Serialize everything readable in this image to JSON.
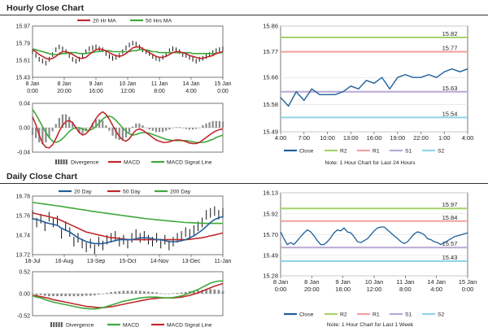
{
  "sections": {
    "hourly": {
      "title": "Hourly Close Chart"
    },
    "daily": {
      "title": "Daily Close Chart"
    }
  },
  "colors": {
    "close": "#1f5f9a",
    "ma_short": "#c0282c",
    "ma_long": "#3fa83c",
    "ma_200": "#3fa83c",
    "macd": "#c0282c",
    "signal": "#3fa83c",
    "divergence": "#8c8c8c",
    "r2": "#a6d36a",
    "r1": "#f2a09e",
    "s1": "#b9a8d4",
    "s2": "#8fd3e8"
  },
  "chart_data": [
    {
      "id": "hourly_price",
      "type": "line",
      "ylim": [
        15.43,
        15.97
      ],
      "yticks": [
        "15.97",
        "15.79",
        "15.61",
        "15.43"
      ],
      "xticks": [
        "8 Jan\n0:00",
        "8 Jan\n20:00",
        "9 Jan\n16:00",
        "10 Jan\n12:00",
        "11 Jan\n8:00",
        "14 Jan\n4:00",
        "15 Jan\n0:00"
      ],
      "legend": [
        "20 Hr MA",
        "50 Hrs MA"
      ],
      "series": [
        {
          "name": "Close",
          "values": [
            15.7,
            15.66,
            15.62,
            15.6,
            15.58,
            15.62,
            15.67,
            15.72,
            15.75,
            15.73,
            15.7,
            15.66,
            15.62,
            15.6,
            15.62,
            15.65,
            15.7,
            15.73,
            15.74,
            15.75,
            15.73,
            15.72,
            15.68,
            15.65,
            15.63,
            15.64,
            15.66,
            15.7,
            15.74,
            15.77,
            15.79,
            15.78,
            15.75,
            15.72,
            15.7,
            15.68,
            15.65,
            15.63,
            15.62,
            15.64,
            15.67,
            15.71,
            15.73,
            15.72,
            15.7,
            15.67,
            15.66,
            15.64,
            15.62,
            15.6,
            15.62,
            15.63,
            15.65,
            15.67,
            15.69,
            15.71,
            15.72,
            15.73
          ]
        },
        {
          "name": "20 Hr MA",
          "values": [
            15.72,
            15.7,
            15.67,
            15.65,
            15.63,
            15.62,
            15.63,
            15.65,
            15.68,
            15.7,
            15.7,
            15.69,
            15.67,
            15.65,
            15.63,
            15.63,
            15.64,
            15.67,
            15.7,
            15.72,
            15.73,
            15.72,
            15.71,
            15.69,
            15.67,
            15.66,
            15.65,
            15.66,
            15.68,
            15.71,
            15.74,
            15.75,
            15.75,
            15.73,
            15.71,
            15.69,
            15.67,
            15.65,
            15.64,
            15.64,
            15.65,
            15.67,
            15.69,
            15.7,
            15.7,
            15.69,
            15.68,
            15.66,
            15.65,
            15.64,
            15.63,
            15.63,
            15.64,
            15.65,
            15.66,
            15.68,
            15.69,
            15.7
          ]
        },
        {
          "name": "50 Hrs MA",
          "values": [
            15.73,
            15.72,
            15.71,
            15.7,
            15.69,
            15.68,
            15.67,
            15.67,
            15.67,
            15.68,
            15.68,
            15.69,
            15.69,
            15.69,
            15.68,
            15.68,
            15.68,
            15.69,
            15.69,
            15.7,
            15.7,
            15.71,
            15.71,
            15.71,
            15.7,
            15.7,
            15.7,
            15.7,
            15.7,
            15.7,
            15.71,
            15.71,
            15.72,
            15.72,
            15.72,
            15.71,
            15.7,
            15.7,
            15.69,
            15.69,
            15.69,
            15.69,
            15.69,
            15.69,
            15.69,
            15.69,
            15.69,
            15.69,
            15.68,
            15.68,
            15.68,
            15.68,
            15.68,
            15.68,
            15.68,
            15.68,
            15.69,
            15.69
          ]
        }
      ]
    },
    {
      "id": "hourly_macd",
      "type": "line",
      "ylim": [
        -0.04,
        0.04
      ],
      "yticks": [
        "0.04",
        "0.00",
        "-0.04"
      ],
      "legend": [
        "Divergence",
        "MACD",
        "MACD Signal Line"
      ],
      "series": [
        {
          "name": "MACD",
          "values": [
            0.018,
            0.005,
            -0.012,
            -0.025,
            -0.032,
            -0.033,
            -0.028,
            -0.018,
            -0.006,
            0.004,
            0.01,
            0.012,
            0.008,
            0.0,
            -0.008,
            -0.012,
            -0.01,
            -0.004,
            0.006,
            0.015,
            0.022,
            0.026,
            0.022,
            0.014,
            0.004,
            -0.006,
            -0.014,
            -0.02,
            -0.022,
            -0.018,
            -0.01,
            -0.004,
            -0.002,
            -0.004,
            -0.008,
            -0.012,
            -0.016,
            -0.02,
            -0.022,
            -0.024,
            -0.024,
            -0.023,
            -0.021,
            -0.02,
            -0.02,
            -0.021,
            -0.023,
            -0.025,
            -0.026,
            -0.026,
            -0.024,
            -0.02,
            -0.016,
            -0.012,
            -0.008,
            -0.005,
            -0.003,
            -0.002
          ]
        },
        {
          "name": "MACD Signal Line",
          "values": [
            0.03,
            0.022,
            0.012,
            0.002,
            -0.008,
            -0.016,
            -0.022,
            -0.024,
            -0.022,
            -0.018,
            -0.012,
            -0.006,
            -0.002,
            0.0,
            0.0,
            -0.002,
            -0.004,
            -0.004,
            -0.002,
            0.002,
            0.008,
            0.014,
            0.018,
            0.019,
            0.017,
            0.012,
            0.006,
            0.0,
            -0.006,
            -0.01,
            -0.012,
            -0.011,
            -0.009,
            -0.008,
            -0.008,
            -0.009,
            -0.011,
            -0.013,
            -0.015,
            -0.017,
            -0.019,
            -0.02,
            -0.021,
            -0.021,
            -0.021,
            -0.021,
            -0.021,
            -0.022,
            -0.023,
            -0.024,
            -0.024,
            -0.024,
            -0.023,
            -0.021,
            -0.019,
            -0.016,
            -0.014,
            -0.012
          ]
        }
      ]
    },
    {
      "id": "hourly_24h",
      "type": "line",
      "ylim": [
        15.49,
        15.86
      ],
      "yticks": [
        "15.86",
        "15.77",
        "15.68",
        "15.58",
        "15.49"
      ],
      "xticks": [
        "4:00",
        "7:00",
        "10:00",
        "13:00",
        "16:00",
        "19:00",
        "22:00",
        "1:00",
        "4:00"
      ],
      "legend": [
        "Close",
        "R2",
        "R1",
        "S1",
        "S2"
      ],
      "levels": {
        "R2": 15.82,
        "R1": 15.77,
        "S1": 15.63,
        "S2": 15.54
      },
      "level_labels": {
        "R2": "15.82",
        "R1": "15.77",
        "S1": "15.63",
        "S2": "15.54"
      },
      "note": "Note: 1 Hour Chart for Last 24 Hours",
      "series": [
        {
          "name": "Close",
          "values": [
            15.61,
            15.58,
            15.63,
            15.6,
            15.64,
            15.62,
            15.62,
            15.62,
            15.63,
            15.65,
            15.64,
            15.67,
            15.66,
            15.68,
            15.64,
            15.68,
            15.69,
            15.68,
            15.68,
            15.69,
            15.68,
            15.7,
            15.71,
            15.7,
            15.71
          ]
        }
      ]
    },
    {
      "id": "daily_price",
      "type": "line",
      "ylim": [
        13.72,
        16.78
      ],
      "yticks": [
        "16.78",
        "15.76",
        "14.74",
        "13.72"
      ],
      "xticks": [
        "18-Jul",
        "16-Aug",
        "13-Sep",
        "15-Oct",
        "14-Nov",
        "13-Dec",
        "11-Jan"
      ],
      "legend": [
        "20 Day",
        "50 Day",
        "200 Day"
      ],
      "series": [
        {
          "name": "Close",
          "values": [
            15.8,
            15.4,
            15.6,
            15.2,
            15.7,
            15.4,
            15.5,
            14.8,
            15.2,
            14.9,
            14.4,
            14.6,
            14.3,
            14.1,
            14.3,
            14.0,
            14.4,
            14.2,
            14.5,
            14.6,
            14.7,
            14.4,
            14.5,
            14.3,
            14.6,
            14.8,
            14.6,
            14.7,
            14.5,
            14.4,
            14.6,
            14.3,
            14.5,
            14.2,
            14.4,
            14.6,
            14.7,
            14.9,
            14.8,
            15.0,
            15.2,
            15.4,
            15.8,
            15.9,
            16.0,
            15.8,
            15.9
          ]
        },
        {
          "name": "20 Day",
          "values": [
            15.6,
            15.55,
            15.5,
            15.4,
            15.35,
            15.3,
            15.25,
            15.1,
            15.0,
            14.9,
            14.75,
            14.6,
            14.5,
            14.4,
            14.35,
            14.3,
            14.3,
            14.3,
            14.35,
            14.4,
            14.45,
            14.5,
            14.5,
            14.5,
            14.5,
            14.55,
            14.6,
            14.6,
            14.6,
            14.55,
            14.5,
            14.5,
            14.45,
            14.4,
            14.4,
            14.4,
            14.45,
            14.5,
            14.6,
            14.7,
            14.85,
            15.0,
            15.2,
            15.4,
            15.55,
            15.65,
            15.7
          ]
        },
        {
          "name": "50 Day",
          "values": [
            15.9,
            15.85,
            15.8,
            15.75,
            15.7,
            15.65,
            15.6,
            15.5,
            15.4,
            15.3,
            15.2,
            15.1,
            15.0,
            14.9,
            14.85,
            14.8,
            14.75,
            14.7,
            14.65,
            14.6,
            14.6,
            14.55,
            14.55,
            14.5,
            14.5,
            14.5,
            14.5,
            14.5,
            14.5,
            14.5,
            14.5,
            14.5,
            14.5,
            14.5,
            14.5,
            14.5,
            14.5,
            14.5,
            14.52,
            14.55,
            14.58,
            14.6,
            14.65,
            14.7,
            14.75,
            14.8,
            14.85
          ]
        },
        {
          "name": "200 Day",
          "values": [
            16.45,
            16.42,
            16.39,
            16.36,
            16.33,
            16.3,
            16.27,
            16.24,
            16.2,
            16.17,
            16.14,
            16.1,
            16.07,
            16.04,
            16.0,
            15.97,
            15.94,
            15.91,
            15.88,
            15.85,
            15.82,
            15.79,
            15.76,
            15.73,
            15.7,
            15.67,
            15.64,
            15.61,
            15.59,
            15.57,
            15.54,
            15.52,
            15.5,
            15.48,
            15.46,
            15.44,
            15.42,
            15.4,
            15.39,
            15.38,
            15.37,
            15.36,
            15.35,
            15.35,
            15.35,
            15.35,
            15.35
          ]
        }
      ]
    },
    {
      "id": "daily_macd",
      "type": "line",
      "ylim": [
        -0.52,
        0.52
      ],
      "yticks": [
        "0.52",
        "0.00",
        "-0.52"
      ],
      "legend": [
        "Divergence",
        "MACD",
        "MACD Signal Line"
      ],
      "series": [
        {
          "name": "MACD",
          "values": [
            -0.05,
            -0.08,
            -0.1,
            -0.14,
            -0.17,
            -0.2,
            -0.22,
            -0.24,
            -0.26,
            -0.28,
            -0.3,
            -0.32,
            -0.34,
            -0.35,
            -0.36,
            -0.36,
            -0.35,
            -0.33,
            -0.3,
            -0.27,
            -0.24,
            -0.21,
            -0.18,
            -0.16,
            -0.14,
            -0.12,
            -0.1,
            -0.09,
            -0.08,
            -0.08,
            -0.08,
            -0.09,
            -0.1,
            -0.1,
            -0.09,
            -0.07,
            -0.05,
            -0.02,
            0.02,
            0.06,
            0.1,
            0.15,
            0.2,
            0.25,
            0.28,
            0.3,
            0.3
          ]
        },
        {
          "name": "MACD Signal Line",
          "values": [
            -0.04,
            -0.05,
            -0.07,
            -0.09,
            -0.11,
            -0.14,
            -0.16,
            -0.18,
            -0.2,
            -0.22,
            -0.24,
            -0.26,
            -0.28,
            -0.3,
            -0.31,
            -0.32,
            -0.33,
            -0.33,
            -0.32,
            -0.31,
            -0.29,
            -0.27,
            -0.25,
            -0.23,
            -0.21,
            -0.19,
            -0.17,
            -0.15,
            -0.13,
            -0.12,
            -0.11,
            -0.1,
            -0.1,
            -0.1,
            -0.1,
            -0.09,
            -0.08,
            -0.06,
            -0.04,
            -0.01,
            0.02,
            0.06,
            0.1,
            0.14,
            0.18,
            0.21,
            0.24
          ]
        }
      ]
    },
    {
      "id": "daily_week",
      "type": "line",
      "ylim": [
        15.28,
        16.13
      ],
      "yticks": [
        "16.13",
        "15.92",
        "15.70",
        "15.49",
        "15.28"
      ],
      "xticks": [
        "8 Jan\n0:00",
        "8 Jan\n20:00",
        "9 Jan\n16:00",
        "10 Jan\n12:00",
        "11 Jan\n8:00",
        "14 Jan\n4:00",
        "15 Jan\n0:00"
      ],
      "legend": [
        "Close",
        "R2",
        "R1",
        "S1",
        "S2"
      ],
      "levels": {
        "R2": 15.97,
        "R1": 15.84,
        "S1": 15.57,
        "S2": 15.43
      },
      "level_labels": {
        "R2": "15.97",
        "R1": "15.84",
        "S1": "15.57",
        "S2": "15.43"
      },
      "note": "Note: 1 Hour Chart for Last 1 Week",
      "series": [
        {
          "name": "Close",
          "values": [
            15.73,
            15.66,
            15.6,
            15.62,
            15.6,
            15.64,
            15.68,
            15.72,
            15.75,
            15.73,
            15.69,
            15.64,
            15.6,
            15.6,
            15.63,
            15.67,
            15.72,
            15.75,
            15.74,
            15.77,
            15.73,
            15.72,
            15.68,
            15.63,
            15.62,
            15.64,
            15.66,
            15.7,
            15.74,
            15.77,
            15.78,
            15.78,
            15.75,
            15.72,
            15.69,
            15.66,
            15.63,
            15.61,
            15.63,
            15.67,
            15.71,
            15.73,
            15.72,
            15.7,
            15.66,
            15.65,
            15.63,
            15.62,
            15.6,
            15.62,
            15.64,
            15.66,
            15.68,
            15.69,
            15.7,
            15.71,
            15.72
          ]
        }
      ]
    }
  ]
}
